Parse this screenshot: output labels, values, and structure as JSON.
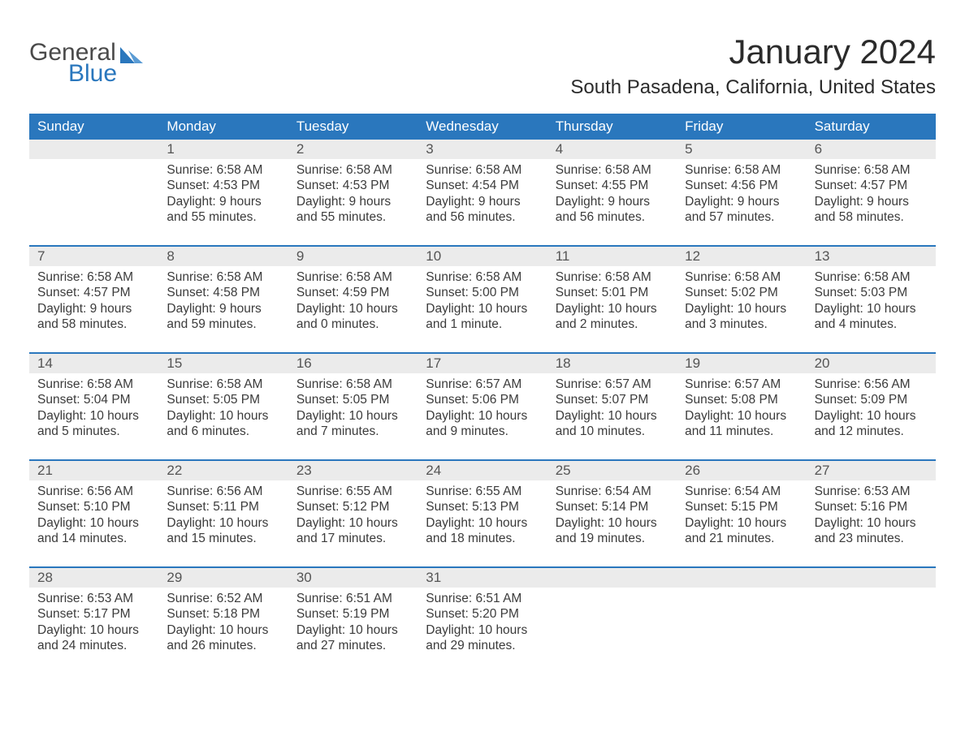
{
  "logo": {
    "word1": "General",
    "word2": "Blue",
    "mark_color": "#2a77bd",
    "text_gray": "#4a4a4a"
  },
  "header": {
    "title": "January 2024",
    "location": "South Pasadena, California, United States"
  },
  "colors": {
    "header_bg": "#2a77bd",
    "header_fg": "#ffffff",
    "row_bg": "#ebebeb",
    "body_text": "#3b3b3b",
    "page_bg": "#ffffff"
  },
  "typography": {
    "title_fontsize": 42,
    "location_fontsize": 24,
    "dayheader_fontsize": 17,
    "date_fontsize": 17,
    "detail_fontsize": 15.5,
    "font_family": "Arial"
  },
  "day_names": [
    "Sunday",
    "Monday",
    "Tuesday",
    "Wednesday",
    "Thursday",
    "Friday",
    "Saturday"
  ],
  "weeks": [
    [
      {
        "date": "",
        "sunrise": "",
        "sunset": "",
        "daylight1": "",
        "daylight2": ""
      },
      {
        "date": "1",
        "sunrise": "Sunrise: 6:58 AM",
        "sunset": "Sunset: 4:53 PM",
        "daylight1": "Daylight: 9 hours",
        "daylight2": "and 55 minutes."
      },
      {
        "date": "2",
        "sunrise": "Sunrise: 6:58 AM",
        "sunset": "Sunset: 4:53 PM",
        "daylight1": "Daylight: 9 hours",
        "daylight2": "and 55 minutes."
      },
      {
        "date": "3",
        "sunrise": "Sunrise: 6:58 AM",
        "sunset": "Sunset: 4:54 PM",
        "daylight1": "Daylight: 9 hours",
        "daylight2": "and 56 minutes."
      },
      {
        "date": "4",
        "sunrise": "Sunrise: 6:58 AM",
        "sunset": "Sunset: 4:55 PM",
        "daylight1": "Daylight: 9 hours",
        "daylight2": "and 56 minutes."
      },
      {
        "date": "5",
        "sunrise": "Sunrise: 6:58 AM",
        "sunset": "Sunset: 4:56 PM",
        "daylight1": "Daylight: 9 hours",
        "daylight2": "and 57 minutes."
      },
      {
        "date": "6",
        "sunrise": "Sunrise: 6:58 AM",
        "sunset": "Sunset: 4:57 PM",
        "daylight1": "Daylight: 9 hours",
        "daylight2": "and 58 minutes."
      }
    ],
    [
      {
        "date": "7",
        "sunrise": "Sunrise: 6:58 AM",
        "sunset": "Sunset: 4:57 PM",
        "daylight1": "Daylight: 9 hours",
        "daylight2": "and 58 minutes."
      },
      {
        "date": "8",
        "sunrise": "Sunrise: 6:58 AM",
        "sunset": "Sunset: 4:58 PM",
        "daylight1": "Daylight: 9 hours",
        "daylight2": "and 59 minutes."
      },
      {
        "date": "9",
        "sunrise": "Sunrise: 6:58 AM",
        "sunset": "Sunset: 4:59 PM",
        "daylight1": "Daylight: 10 hours",
        "daylight2": "and 0 minutes."
      },
      {
        "date": "10",
        "sunrise": "Sunrise: 6:58 AM",
        "sunset": "Sunset: 5:00 PM",
        "daylight1": "Daylight: 10 hours",
        "daylight2": "and 1 minute."
      },
      {
        "date": "11",
        "sunrise": "Sunrise: 6:58 AM",
        "sunset": "Sunset: 5:01 PM",
        "daylight1": "Daylight: 10 hours",
        "daylight2": "and 2 minutes."
      },
      {
        "date": "12",
        "sunrise": "Sunrise: 6:58 AM",
        "sunset": "Sunset: 5:02 PM",
        "daylight1": "Daylight: 10 hours",
        "daylight2": "and 3 minutes."
      },
      {
        "date": "13",
        "sunrise": "Sunrise: 6:58 AM",
        "sunset": "Sunset: 5:03 PM",
        "daylight1": "Daylight: 10 hours",
        "daylight2": "and 4 minutes."
      }
    ],
    [
      {
        "date": "14",
        "sunrise": "Sunrise: 6:58 AM",
        "sunset": "Sunset: 5:04 PM",
        "daylight1": "Daylight: 10 hours",
        "daylight2": "and 5 minutes."
      },
      {
        "date": "15",
        "sunrise": "Sunrise: 6:58 AM",
        "sunset": "Sunset: 5:05 PM",
        "daylight1": "Daylight: 10 hours",
        "daylight2": "and 6 minutes."
      },
      {
        "date": "16",
        "sunrise": "Sunrise: 6:58 AM",
        "sunset": "Sunset: 5:05 PM",
        "daylight1": "Daylight: 10 hours",
        "daylight2": "and 7 minutes."
      },
      {
        "date": "17",
        "sunrise": "Sunrise: 6:57 AM",
        "sunset": "Sunset: 5:06 PM",
        "daylight1": "Daylight: 10 hours",
        "daylight2": "and 9 minutes."
      },
      {
        "date": "18",
        "sunrise": "Sunrise: 6:57 AM",
        "sunset": "Sunset: 5:07 PM",
        "daylight1": "Daylight: 10 hours",
        "daylight2": "and 10 minutes."
      },
      {
        "date": "19",
        "sunrise": "Sunrise: 6:57 AM",
        "sunset": "Sunset: 5:08 PM",
        "daylight1": "Daylight: 10 hours",
        "daylight2": "and 11 minutes."
      },
      {
        "date": "20",
        "sunrise": "Sunrise: 6:56 AM",
        "sunset": "Sunset: 5:09 PM",
        "daylight1": "Daylight: 10 hours",
        "daylight2": "and 12 minutes."
      }
    ],
    [
      {
        "date": "21",
        "sunrise": "Sunrise: 6:56 AM",
        "sunset": "Sunset: 5:10 PM",
        "daylight1": "Daylight: 10 hours",
        "daylight2": "and 14 minutes."
      },
      {
        "date": "22",
        "sunrise": "Sunrise: 6:56 AM",
        "sunset": "Sunset: 5:11 PM",
        "daylight1": "Daylight: 10 hours",
        "daylight2": "and 15 minutes."
      },
      {
        "date": "23",
        "sunrise": "Sunrise: 6:55 AM",
        "sunset": "Sunset: 5:12 PM",
        "daylight1": "Daylight: 10 hours",
        "daylight2": "and 17 minutes."
      },
      {
        "date": "24",
        "sunrise": "Sunrise: 6:55 AM",
        "sunset": "Sunset: 5:13 PM",
        "daylight1": "Daylight: 10 hours",
        "daylight2": "and 18 minutes."
      },
      {
        "date": "25",
        "sunrise": "Sunrise: 6:54 AM",
        "sunset": "Sunset: 5:14 PM",
        "daylight1": "Daylight: 10 hours",
        "daylight2": "and 19 minutes."
      },
      {
        "date": "26",
        "sunrise": "Sunrise: 6:54 AM",
        "sunset": "Sunset: 5:15 PM",
        "daylight1": "Daylight: 10 hours",
        "daylight2": "and 21 minutes."
      },
      {
        "date": "27",
        "sunrise": "Sunrise: 6:53 AM",
        "sunset": "Sunset: 5:16 PM",
        "daylight1": "Daylight: 10 hours",
        "daylight2": "and 23 minutes."
      }
    ],
    [
      {
        "date": "28",
        "sunrise": "Sunrise: 6:53 AM",
        "sunset": "Sunset: 5:17 PM",
        "daylight1": "Daylight: 10 hours",
        "daylight2": "and 24 minutes."
      },
      {
        "date": "29",
        "sunrise": "Sunrise: 6:52 AM",
        "sunset": "Sunset: 5:18 PM",
        "daylight1": "Daylight: 10 hours",
        "daylight2": "and 26 minutes."
      },
      {
        "date": "30",
        "sunrise": "Sunrise: 6:51 AM",
        "sunset": "Sunset: 5:19 PM",
        "daylight1": "Daylight: 10 hours",
        "daylight2": "and 27 minutes."
      },
      {
        "date": "31",
        "sunrise": "Sunrise: 6:51 AM",
        "sunset": "Sunset: 5:20 PM",
        "daylight1": "Daylight: 10 hours",
        "daylight2": "and 29 minutes."
      },
      {
        "date": "",
        "sunrise": "",
        "sunset": "",
        "daylight1": "",
        "daylight2": ""
      },
      {
        "date": "",
        "sunrise": "",
        "sunset": "",
        "daylight1": "",
        "daylight2": ""
      },
      {
        "date": "",
        "sunrise": "",
        "sunset": "",
        "daylight1": "",
        "daylight2": ""
      }
    ]
  ]
}
